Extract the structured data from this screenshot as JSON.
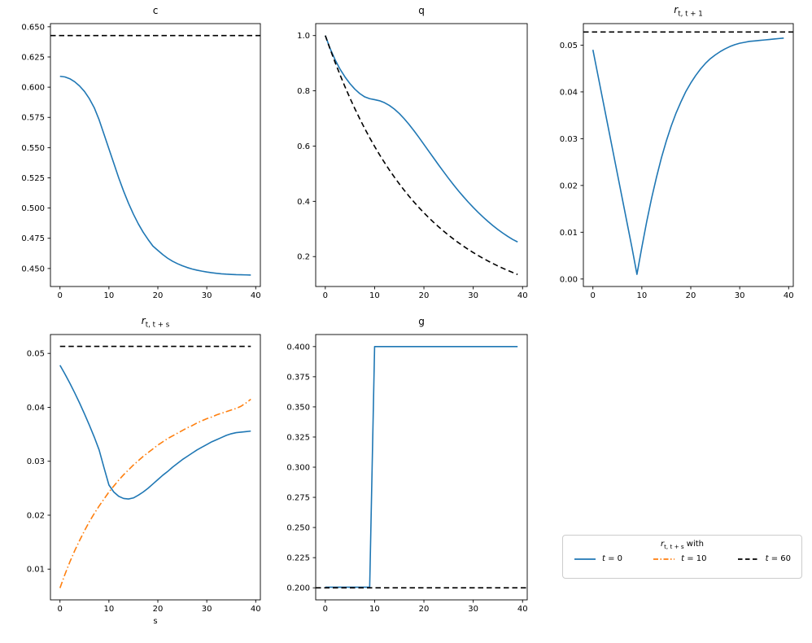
{
  "figure": {
    "background": "#ffffff"
  },
  "colors": {
    "blue": "#1f77b4",
    "orange": "#ff7f0e",
    "black": "#000000",
    "legend_edge": "#cccccc"
  },
  "legend": {
    "title": "r_{t, t + s} with",
    "entries": [
      {
        "label": "t = 0",
        "color": "#1f77b4",
        "style": "solid"
      },
      {
        "label": "t = 10",
        "color": "#ff7f0e",
        "style": "dashdot"
      },
      {
        "label": "t = 60",
        "color": "#000000",
        "style": "dashed"
      }
    ]
  },
  "chart_data": [
    {
      "id": "c",
      "type": "line",
      "title": "c",
      "xlabel": "",
      "xlim": [
        -1.95,
        40.95
      ],
      "ylim": [
        0.4351,
        0.6526
      ],
      "xticks": [
        "0",
        "10",
        "20",
        "30",
        "40"
      ],
      "yticks": [
        "0.450",
        "0.475",
        "0.500",
        "0.525",
        "0.550",
        "0.575",
        "0.600",
        "0.625",
        "0.650"
      ],
      "series": [
        {
          "name": "c-path",
          "color": "#1f77b4",
          "style": "solid",
          "values": [
            0.609,
            0.6085,
            0.607,
            0.6045,
            0.601,
            0.5965,
            0.5905,
            0.583,
            0.573,
            0.561,
            0.549,
            0.537,
            0.525,
            0.514,
            0.504,
            0.495,
            0.487,
            0.48,
            0.474,
            0.4685,
            0.465,
            0.4615,
            0.4585,
            0.456,
            0.454,
            0.4523,
            0.4508,
            0.4496,
            0.4486,
            0.4478,
            0.4471,
            0.4465,
            0.446,
            0.4456,
            0.4453,
            0.4451,
            0.4449,
            0.4448,
            0.4447,
            0.4446
          ]
        },
        {
          "name": "c-steady-state",
          "color": "#000000",
          "style": "dashed",
          "axhline": 0.6427
        }
      ]
    },
    {
      "id": "q",
      "type": "line",
      "title": "q",
      "xlabel": "",
      "xlim": [
        -1.95,
        40.95
      ],
      "ylim": [
        0.0917,
        1.0433
      ],
      "xticks": [
        "0",
        "10",
        "20",
        "30",
        "40"
      ],
      "yticks": [
        "0.2",
        "0.4",
        "0.6",
        "0.8",
        "1.0"
      ],
      "series": [
        {
          "name": "q-path",
          "color": "#1f77b4",
          "style": "solid",
          "values": [
            1.0,
            0.952,
            0.912,
            0.878,
            0.85,
            0.826,
            0.806,
            0.79,
            0.778,
            0.7715,
            0.768,
            0.764,
            0.757,
            0.747,
            0.734,
            0.718,
            0.699,
            0.678,
            0.655,
            0.631,
            0.606,
            0.581,
            0.556,
            0.531,
            0.507,
            0.483,
            0.46,
            0.438,
            0.417,
            0.397,
            0.378,
            0.36,
            0.343,
            0.327,
            0.312,
            0.298,
            0.285,
            0.273,
            0.262,
            0.253
          ]
        },
        {
          "name": "q-benchmark",
          "color": "#000000",
          "style": "dashed",
          "values": [
            1.0,
            0.95,
            0.9025,
            0.8574,
            0.8145,
            0.7738,
            0.7351,
            0.6983,
            0.6634,
            0.6302,
            0.5987,
            0.5688,
            0.5404,
            0.5133,
            0.4877,
            0.4633,
            0.4401,
            0.4181,
            0.3972,
            0.3774,
            0.3585,
            0.3406,
            0.3235,
            0.3074,
            0.292,
            0.2774,
            0.2635,
            0.2503,
            0.2378,
            0.2259,
            0.2146,
            0.2039,
            0.1937,
            0.184,
            0.1748,
            0.1661,
            0.1578,
            0.1499,
            0.1424,
            0.1353
          ]
        }
      ]
    },
    {
      "id": "r_t_t1",
      "type": "line",
      "title": "r_{t, t + 1}",
      "xlabel": "",
      "xlim": [
        -1.95,
        40.95
      ],
      "ylim": [
        -0.0016,
        0.0546
      ],
      "xticks": [
        "0",
        "10",
        "20",
        "30",
        "40"
      ],
      "yticks": [
        "0.00",
        "0.01",
        "0.02",
        "0.03",
        "0.04",
        "0.05"
      ],
      "series": [
        {
          "name": "r1-path",
          "color": "#1f77b4",
          "style": "solid",
          "values": [
            0.049,
            0.0437,
            0.0384,
            0.0331,
            0.0278,
            0.0225,
            0.0172,
            0.0119,
            0.0066,
            0.001,
            0.0068,
            0.0123,
            0.0173,
            0.0218,
            0.0259,
            0.0295,
            0.0327,
            0.0355,
            0.0379,
            0.0401,
            0.0419,
            0.0435,
            0.0449,
            0.0461,
            0.0471,
            0.0479,
            0.0486,
            0.0492,
            0.0497,
            0.0501,
            0.0504,
            0.0506,
            0.0508,
            0.0509,
            0.051,
            0.0511,
            0.0512,
            0.0513,
            0.0514,
            0.0515
          ]
        },
        {
          "name": "r1-steady-state",
          "color": "#000000",
          "style": "dashed",
          "axhline": 0.0528
        }
      ]
    },
    {
      "id": "r_t_ts",
      "type": "line",
      "title": "r_{t, t + s}",
      "xlabel": "s",
      "xlim": [
        -1.95,
        40.95
      ],
      "ylim": [
        0.0043,
        0.0535
      ],
      "xticks": [
        "0",
        "10",
        "20",
        "30",
        "40"
      ],
      "yticks": [
        "0.01",
        "0.02",
        "0.03",
        "0.04",
        "0.05"
      ],
      "series": [
        {
          "name": "t-0-curve",
          "color": "#1f77b4",
          "style": "solid",
          "values": [
            0.0478,
            0.0462,
            0.0445,
            0.0427,
            0.0408,
            0.0388,
            0.0367,
            0.0345,
            0.0321,
            0.0288,
            0.0256,
            0.0243,
            0.0235,
            0.0231,
            0.023,
            0.0232,
            0.0237,
            0.0243,
            0.025,
            0.0258,
            0.0266,
            0.0274,
            0.0281,
            0.0289,
            0.0296,
            0.0303,
            0.0309,
            0.0315,
            0.0321,
            0.0326,
            0.0331,
            0.0336,
            0.034,
            0.0344,
            0.0348,
            0.0351,
            0.0353,
            0.0354,
            0.0355,
            0.0356
          ]
        },
        {
          "name": "t-10-curve",
          "color": "#ff7f0e",
          "style": "dashdot",
          "values": [
            0.0065,
            0.009,
            0.0113,
            0.0134,
            0.0153,
            0.0171,
            0.0188,
            0.0203,
            0.0217,
            0.023,
            0.0243,
            0.0254,
            0.0265,
            0.0275,
            0.0284,
            0.0293,
            0.0301,
            0.0309,
            0.0316,
            0.0323,
            0.033,
            0.0336,
            0.0342,
            0.0347,
            0.0352,
            0.0357,
            0.0362,
            0.0366,
            0.0371,
            0.0375,
            0.0379,
            0.0382,
            0.0386,
            0.0389,
            0.0392,
            0.0395,
            0.0398,
            0.0402,
            0.0408,
            0.0415
          ]
        },
        {
          "name": "t-60-curve",
          "color": "#000000",
          "style": "dashed",
          "constant": 0.0513,
          "n": 40
        }
      ]
    },
    {
      "id": "g",
      "type": "line",
      "title": "g",
      "xlabel": "",
      "xlim": [
        -1.95,
        40.95
      ],
      "ylim": [
        0.19,
        0.41
      ],
      "xticks": [
        "0",
        "10",
        "20",
        "30",
        "40"
      ],
      "yticks": [
        "0.200",
        "0.225",
        "0.250",
        "0.275",
        "0.300",
        "0.325",
        "0.350",
        "0.375",
        "0.400"
      ],
      "series": [
        {
          "name": "g-path",
          "color": "#1f77b4",
          "style": "solid",
          "values": [
            0.2005,
            0.2005,
            0.2005,
            0.2005,
            0.2005,
            0.2005,
            0.2005,
            0.2005,
            0.2005,
            0.2005,
            0.4,
            0.4,
            0.4,
            0.4,
            0.4,
            0.4,
            0.4,
            0.4,
            0.4,
            0.4,
            0.4,
            0.4,
            0.4,
            0.4,
            0.4,
            0.4,
            0.4,
            0.4,
            0.4,
            0.4,
            0.4,
            0.4,
            0.4,
            0.4,
            0.4,
            0.4,
            0.4,
            0.4,
            0.4,
            0.4
          ]
        },
        {
          "name": "g-steady-state",
          "color": "#000000",
          "style": "dashed",
          "axhline": 0.2
        }
      ]
    }
  ]
}
